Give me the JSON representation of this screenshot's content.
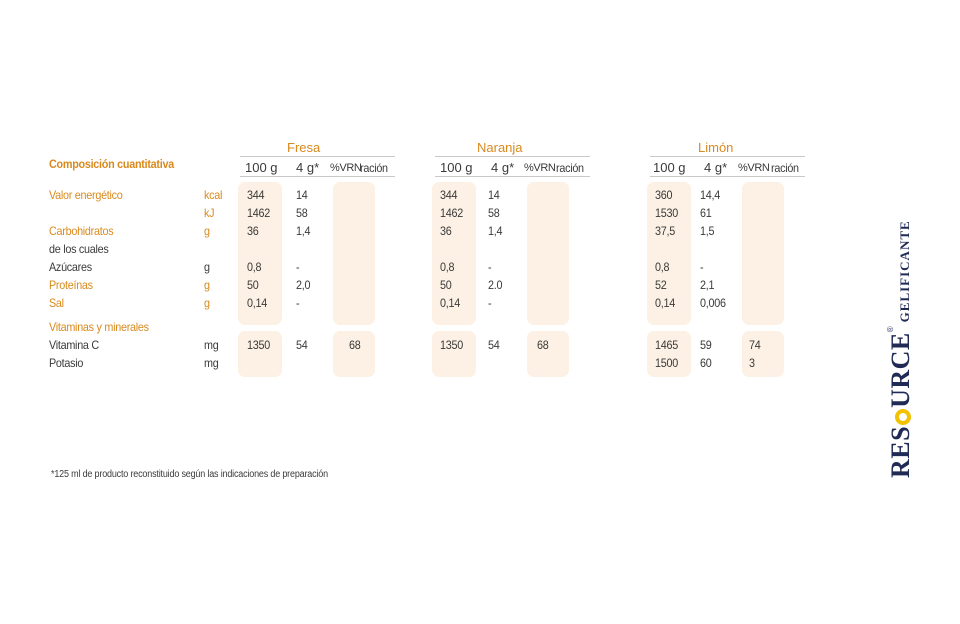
{
  "section_title": "Composición cuantitativa",
  "flavors": [
    "Fresa",
    "Naranja",
    "Limón"
  ],
  "col_100g": "100 g",
  "col_4g": "4 g*",
  "col_vrn": "%VRN",
  "col_racion": "ración",
  "rows": [
    {
      "label": "Valor energético",
      "unit": "kcal",
      "f": [
        "344",
        "14",
        ""
      ],
      "n": [
        "344",
        "14",
        ""
      ],
      "l": [
        "360",
        "14,4",
        ""
      ]
    },
    {
      "label": "",
      "unit": "kJ",
      "f": [
        "1462",
        "58",
        ""
      ],
      "n": [
        "1462",
        "58",
        ""
      ],
      "l": [
        "1530",
        "61",
        ""
      ]
    },
    {
      "label": "Carbohidratos",
      "unit": "g",
      "f": [
        "36",
        "1,4",
        ""
      ],
      "n": [
        "36",
        "1,4",
        ""
      ],
      "l": [
        "37,5",
        "1,5",
        ""
      ]
    },
    {
      "label": "de los cuales",
      "unit": "",
      "f": [
        "",
        "",
        ""
      ],
      "n": [
        "",
        "",
        ""
      ],
      "l": [
        "",
        "",
        ""
      ]
    },
    {
      "label": "Azúcares",
      "unit": "g",
      "f": [
        "0,8",
        "-",
        ""
      ],
      "n": [
        "0,8",
        "-",
        ""
      ],
      "l": [
        "0,8",
        "-",
        ""
      ]
    },
    {
      "label": "Proteínas",
      "unit": "g",
      "f": [
        "50",
        "2,0",
        ""
      ],
      "n": [
        "50",
        "2.0",
        ""
      ],
      "l": [
        "52",
        "2,1",
        ""
      ]
    },
    {
      "label": "Sal",
      "unit": "g",
      "f": [
        "0,14",
        "-",
        ""
      ],
      "n": [
        "0,14",
        "-",
        ""
      ],
      "l": [
        "0,14",
        "0,006",
        ""
      ]
    },
    {
      "label": "Vitaminas y minerales",
      "unit": "",
      "f": [
        "",
        "",
        ""
      ],
      "n": [
        "",
        "",
        ""
      ],
      "l": [
        "",
        "",
        ""
      ]
    },
    {
      "label": "Vitamina C",
      "unit": "mg",
      "f": [
        "1350",
        "54",
        "68"
      ],
      "n": [
        "1350",
        "54",
        "68"
      ],
      "l": [
        "1465",
        "59",
        "74"
      ]
    },
    {
      "label": "Potasio",
      "unit": "mg",
      "f": [
        "",
        "",
        ""
      ],
      "n": [
        "",
        "",
        ""
      ],
      "l": [
        "1500",
        "60",
        "3"
      ]
    }
  ],
  "footnote": "*125 ml de producto reconstituido según las indicaciones de preparación",
  "brand": {
    "name_a": "RES",
    "name_b": "URCE",
    "reg": "®",
    "product": "GELIFICANTE"
  },
  "colors": {
    "accent": "#d98a1e",
    "shade": "#fcf1e4",
    "brand": "#1f2a55",
    "ring": "#f2c200"
  }
}
